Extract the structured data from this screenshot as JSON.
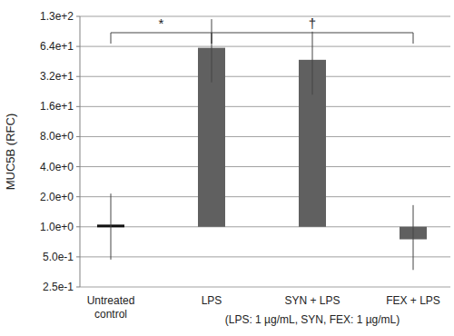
{
  "chart_data": {
    "type": "bar",
    "y_label": "MUC5B (RFC)",
    "x_label": "(LPS: 1 µg/mL, SYN, FEX: 1 µg/mL)",
    "categories": [
      "Untreated control",
      "LPS",
      "SYN + LPS",
      "FEX + LPS"
    ],
    "values": [
      1.02,
      62,
      47,
      0.75
    ],
    "error_low": [
      0.47,
      28,
      21,
      0.37
    ],
    "error_high": [
      2.15,
      120,
      90,
      1.65
    ],
    "color": "#606060",
    "log": "y",
    "grid": true,
    "ylim": [
      0.25,
      128
    ],
    "yticks": [
      {
        "value": 0.25,
        "label": "2.5e-1"
      },
      {
        "value": 0.5,
        "label": "5.0e-1"
      },
      {
        "value": 1,
        "label": "1.0e+0"
      },
      {
        "value": 2,
        "label": "2.0e+0"
      },
      {
        "value": 4,
        "label": "4.0e+0"
      },
      {
        "value": 8,
        "label": "8.0e+0"
      },
      {
        "value": 16,
        "label": "1.6e+1"
      },
      {
        "value": 32,
        "label": "3.2e+1"
      },
      {
        "value": 64,
        "label": "6.4e+1"
      },
      {
        "value": 128,
        "label": "1.3e+2"
      }
    ],
    "annotations": [
      {
        "text": "*",
        "categories": [
          0,
          1
        ]
      },
      {
        "text": "†",
        "categories": [
          1,
          3
        ]
      }
    ]
  }
}
